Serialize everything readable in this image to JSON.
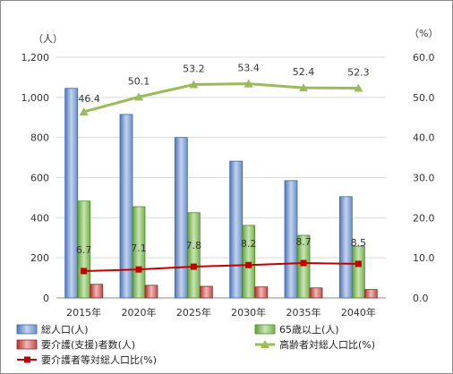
{
  "chart_data": {
    "type": "bar",
    "categories": [
      "2015年",
      "2020年",
      "2025年",
      "2030年",
      "2035年",
      "2040年"
    ],
    "left_axis": {
      "unit": "（人）",
      "ylim": [
        0,
        1200
      ],
      "ticks": [
        "0",
        "200",
        "400",
        "600",
        "800",
        "1,000",
        "1,200"
      ]
    },
    "right_axis": {
      "unit": "（%）",
      "ylim": [
        0,
        60
      ],
      "ticks": [
        "0.0",
        "10.0",
        "20.0",
        "30.0",
        "40.0",
        "50.0",
        "60.0"
      ]
    },
    "grid": true,
    "legend_position": "bottom",
    "series": [
      {
        "name": "総人口(人)",
        "kind": "bar",
        "axis": "left",
        "color": "#4f81bd",
        "values": [
          1045,
          915,
          800,
          682,
          585,
          505
        ]
      },
      {
        "name": "65歳以上(人)",
        "kind": "bar",
        "axis": "left",
        "color": "#70ad47",
        "values": [
          483,
          455,
          425,
          362,
          312,
          258
        ]
      },
      {
        "name": "要介護(支援)者数(人)",
        "kind": "bar",
        "axis": "left",
        "color": "#c0504d",
        "values": [
          68,
          63,
          58,
          55,
          50,
          42
        ]
      },
      {
        "name": "高齢者対総人口比(%)",
        "kind": "line",
        "axis": "right",
        "color": "#9bbb59",
        "marker": "triangle",
        "values": [
          46.4,
          50.1,
          53.2,
          53.4,
          52.4,
          52.3
        ],
        "labels": [
          "46.4",
          "50.1",
          "53.2",
          "53.4",
          "52.4",
          "52.3"
        ]
      },
      {
        "name": "要介護者等対総人口比(%)",
        "kind": "line",
        "axis": "right",
        "color": "#c00000",
        "marker": "square",
        "values": [
          6.7,
          7.1,
          7.8,
          8.2,
          8.7,
          8.5
        ],
        "labels": [
          "6.7",
          "7.1",
          "7.8",
          "8.2",
          "8.7",
          "8.5"
        ]
      }
    ]
  }
}
